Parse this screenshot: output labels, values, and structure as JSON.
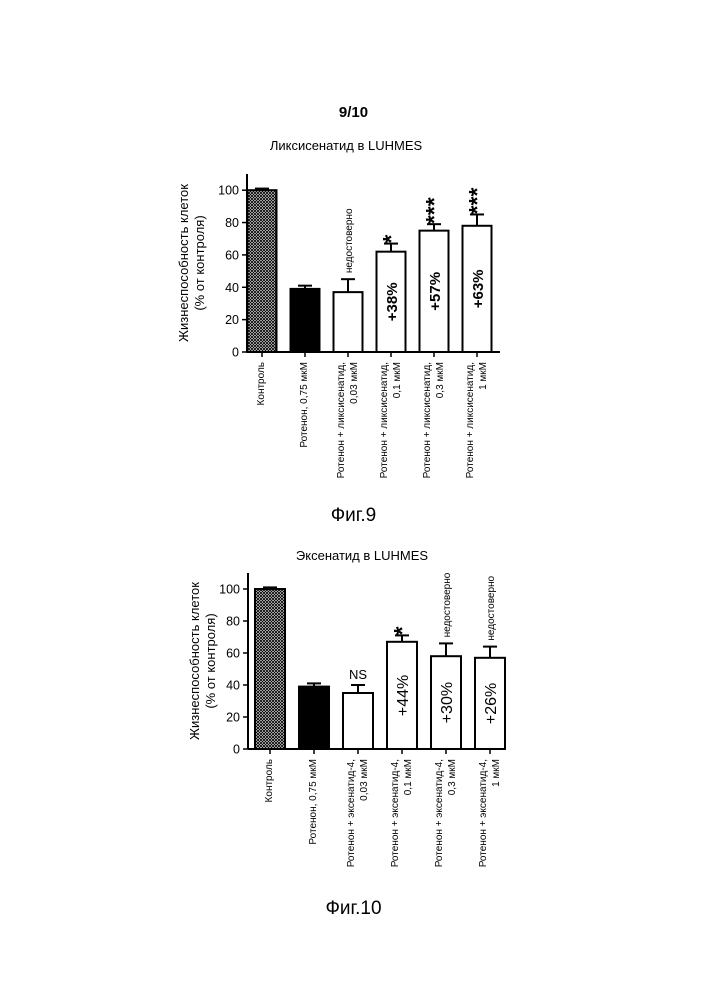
{
  "page": {
    "number": "9/10"
  },
  "figures": [
    {
      "label": "Фиг.9"
    },
    {
      "label": "Фиг.10"
    }
  ],
  "chart_data": [
    {
      "type": "bar",
      "title": "Ликсисенатид в LUHMES",
      "ylabel_line1": "Жизнеспособность клеток",
      "ylabel_line2": "(% от контроля)",
      "ylim": [
        0,
        110
      ],
      "yticks": [
        "0",
        "20",
        "40",
        "60",
        "80",
        "100"
      ],
      "categories": [
        [
          "Контроль"
        ],
        [
          "Ротенон, 0,75 мкМ"
        ],
        [
          "Ротенон + ликсисенатид,",
          "0,03 мкМ"
        ],
        [
          "Ротенон + ликсисенатид,",
          "0,1 мкМ"
        ],
        [
          "Ротенон + ликсисенатид,",
          "0,3 мкМ"
        ],
        [
          "Ротенон + ликсисенатид,",
          "1 мкМ"
        ]
      ],
      "values": [
        100,
        39,
        37,
        62,
        75,
        78
      ],
      "errors": [
        1,
        2,
        8,
        5,
        4,
        7
      ],
      "bar_styles": [
        "hatched",
        "filled",
        "empty",
        "empty",
        "empty",
        "empty"
      ],
      "percent_labels": [
        "",
        "",
        "",
        "+38%",
        "+57%",
        "+63%"
      ],
      "significance": [
        "",
        "",
        "недостоверно",
        "*",
        "***",
        "***"
      ]
    },
    {
      "type": "bar",
      "title": "Эксенатид в LUHMES",
      "ylabel_line1": "Жизнеспособность клеток",
      "ylabel_line2": "(% от контроля)",
      "ylim": [
        0,
        110
      ],
      "yticks": [
        "0",
        "20",
        "40",
        "60",
        "80",
        "100"
      ],
      "categories": [
        [
          "Контроль"
        ],
        [
          "Ротенон, 0,75 мкМ"
        ],
        [
          "Ротенон + эксенатид-4,",
          "0,03 мкМ"
        ],
        [
          "Ротенон + эксенатид-4,",
          "0,1 мкМ"
        ],
        [
          "Ротенон + эксенатид-4,",
          "0,3 мкМ"
        ],
        [
          "Ротенон + эксенатид-4,",
          "1 мкМ"
        ]
      ],
      "values": [
        100,
        39,
        35,
        67,
        58,
        57
      ],
      "errors": [
        1,
        2,
        5,
        4,
        8,
        7
      ],
      "bar_styles": [
        "hatched",
        "filled",
        "empty",
        "empty",
        "empty",
        "empty"
      ],
      "percent_labels": [
        "",
        "",
        "",
        "+44%",
        "+30%",
        "+26%"
      ],
      "significance": [
        "",
        "",
        "NS",
        "*",
        "недостоверно",
        "недостоверно"
      ]
    }
  ]
}
